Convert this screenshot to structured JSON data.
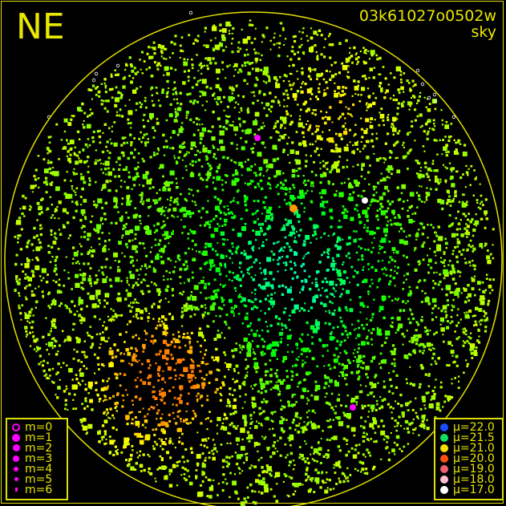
{
  "direction_label": "NE",
  "title": {
    "line1": "03k61027o0502w",
    "line2": "sky"
  },
  "colors": {
    "frame": "#e0e000",
    "text": "#e8e800",
    "background": "#000000",
    "magnitude_marker": "#ff00ff"
  },
  "chart_data": {
    "type": "scatter",
    "title": "03k61027o0502w sky",
    "projection": "all-sky circular",
    "grid": false,
    "magnitude_legend": {
      "placement": "bottom-left",
      "entries": [
        {
          "label": "m=0",
          "style": "open-circle"
        },
        {
          "label": "m=1",
          "style": "filled"
        },
        {
          "label": "m=2",
          "style": "filled"
        },
        {
          "label": "m=3",
          "style": "filled"
        },
        {
          "label": "m=4",
          "style": "filled"
        },
        {
          "label": "m=5",
          "style": "filled"
        },
        {
          "label": "m=6",
          "style": "filled"
        }
      ]
    },
    "sky_brightness_legend": {
      "placement": "bottom-right",
      "entries": [
        {
          "label": "μ=22.0",
          "value": 22.0,
          "color": "#1a4cff"
        },
        {
          "label": "μ=21.5",
          "value": 21.5,
          "color": "#10e060"
        },
        {
          "label": "μ=21.0",
          "value": 21.0,
          "color": "#f8e000"
        },
        {
          "label": "μ=20.0",
          "value": 20.0,
          "color": "#ff5010"
        },
        {
          "label": "μ=19.0",
          "value": 19.0,
          "color": "#f06070"
        },
        {
          "label": "μ=18.0",
          "value": 18.0,
          "color": "#ffc0d0"
        },
        {
          "label": "μ=17.0",
          "value": 17.0,
          "color": "#ffffff"
        }
      ]
    }
  }
}
